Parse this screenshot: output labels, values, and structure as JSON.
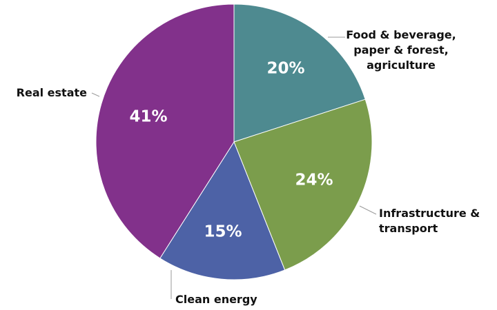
{
  "chart_data": {
    "type": "pie",
    "title": "",
    "categories": [
      "Food & beverage, paper & forest, agriculture",
      "Infrastructure & transport",
      "Clean energy",
      "Real estate"
    ],
    "values": [
      20,
      24,
      15,
      41
    ],
    "value_labels": [
      "20%",
      "24%",
      "15%",
      "41%"
    ],
    "category_lines": [
      [
        "Food & beverage,",
        "paper & forest,",
        "agriculture"
      ],
      [
        "Infrastructure &",
        "transport"
      ],
      [
        "Clean energy"
      ],
      [
        "Real estate"
      ]
    ],
    "colors": [
      "#4e8a90",
      "#7b9d4c",
      "#4d62a6",
      "#82318b"
    ],
    "legend": "none",
    "start_angle": "12 o'clock",
    "direction": "clockwise"
  }
}
